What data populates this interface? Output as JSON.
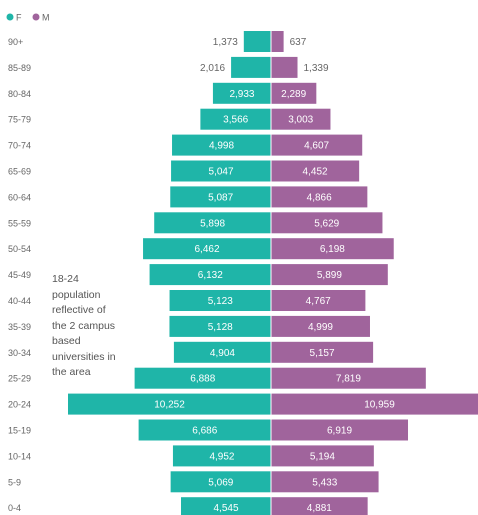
{
  "chart_data": {
    "type": "bar",
    "orientation": "horizontal",
    "layout": "population-pyramid",
    "categories": [
      "90+",
      "85-89",
      "80-84",
      "75-79",
      "70-74",
      "65-69",
      "60-64",
      "55-59",
      "50-54",
      "45-49",
      "40-44",
      "35-39",
      "30-34",
      "25-29",
      "20-24",
      "15-19",
      "10-14",
      "5-9",
      "0-4"
    ],
    "series": [
      {
        "name": "F",
        "color": "#1fb5a8",
        "side": "left",
        "values": [
          1373,
          2016,
          2933,
          3566,
          4998,
          5047,
          5087,
          5898,
          6462,
          6132,
          5123,
          5128,
          4904,
          6888,
          10252,
          6686,
          4952,
          5069,
          4545
        ],
        "labels": [
          "1,373",
          "2,016",
          "2,933",
          "3,566",
          "4,998",
          "5,047",
          "5,087",
          "5,898",
          "6,462",
          "6,132",
          "5,123",
          "5,128",
          "4,904",
          "6,888",
          "10,252",
          "6,686",
          "4,952",
          "5,069",
          "4,545"
        ]
      },
      {
        "name": "M",
        "color": "#a0649c",
        "side": "right",
        "values": [
          637,
          1339,
          2289,
          3003,
          4607,
          4452,
          4866,
          5629,
          6198,
          5899,
          4767,
          4999,
          5157,
          7819,
          10959,
          6919,
          5194,
          5433,
          4881
        ],
        "labels": [
          "637",
          "1,339",
          "2,289",
          "3,003",
          "4,607",
          "4,452",
          "4,866",
          "5,629",
          "6,198",
          "5,899",
          "4,767",
          "4,999",
          "5,157",
          "7,819",
          "10,959",
          "6,919",
          "5,194",
          "5,433",
          "4,881"
        ]
      }
    ],
    "annotation": "18-24\npopulation\nreflective of\nthe 2 campus\nbased\nuniversities in\nthe area",
    "legend": {
      "position": "top-left",
      "entries": [
        "F",
        "M"
      ]
    },
    "xlim": [
      -11000,
      11000
    ],
    "grid": false
  }
}
